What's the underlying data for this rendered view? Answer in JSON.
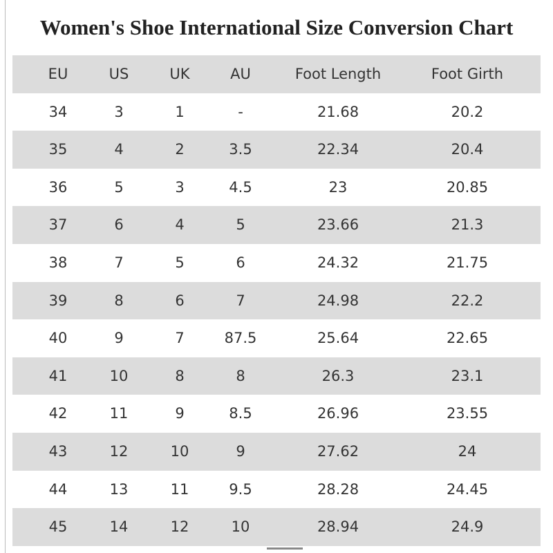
{
  "title": "Women's Shoe International Size Conversion Chart",
  "table": {
    "header": [
      "EU",
      "US",
      "UK",
      "AU",
      "Foot Length",
      "Foot Girth"
    ],
    "rows": [
      [
        "34",
        "3",
        "1",
        "-",
        "21.68",
        "20.2"
      ],
      [
        "35",
        "4",
        "2",
        "3.5",
        "22.34",
        "20.4"
      ],
      [
        "36",
        "5",
        "3",
        "4.5",
        "23",
        "20.85"
      ],
      [
        "37",
        "6",
        "4",
        "5",
        "23.66",
        "21.3"
      ],
      [
        "38",
        "7",
        "5",
        "6",
        "24.32",
        "21.75"
      ],
      [
        "39",
        "8",
        "6",
        "7",
        "24.98",
        "22.2"
      ],
      [
        "40",
        "9",
        "7",
        "87.5",
        "25.64",
        "22.65"
      ],
      [
        "41",
        "10",
        "8",
        "8",
        "26.3",
        "23.1"
      ],
      [
        "42",
        "11",
        "9",
        "8.5",
        "26.96",
        "23.55"
      ],
      [
        "43",
        "12",
        "10",
        "9",
        "27.62",
        "24"
      ],
      [
        "44",
        "13",
        "11",
        "9.5",
        "28.28",
        "24.45"
      ],
      [
        "45",
        "14",
        "12",
        "10",
        "28.94",
        "24.9"
      ]
    ]
  }
}
